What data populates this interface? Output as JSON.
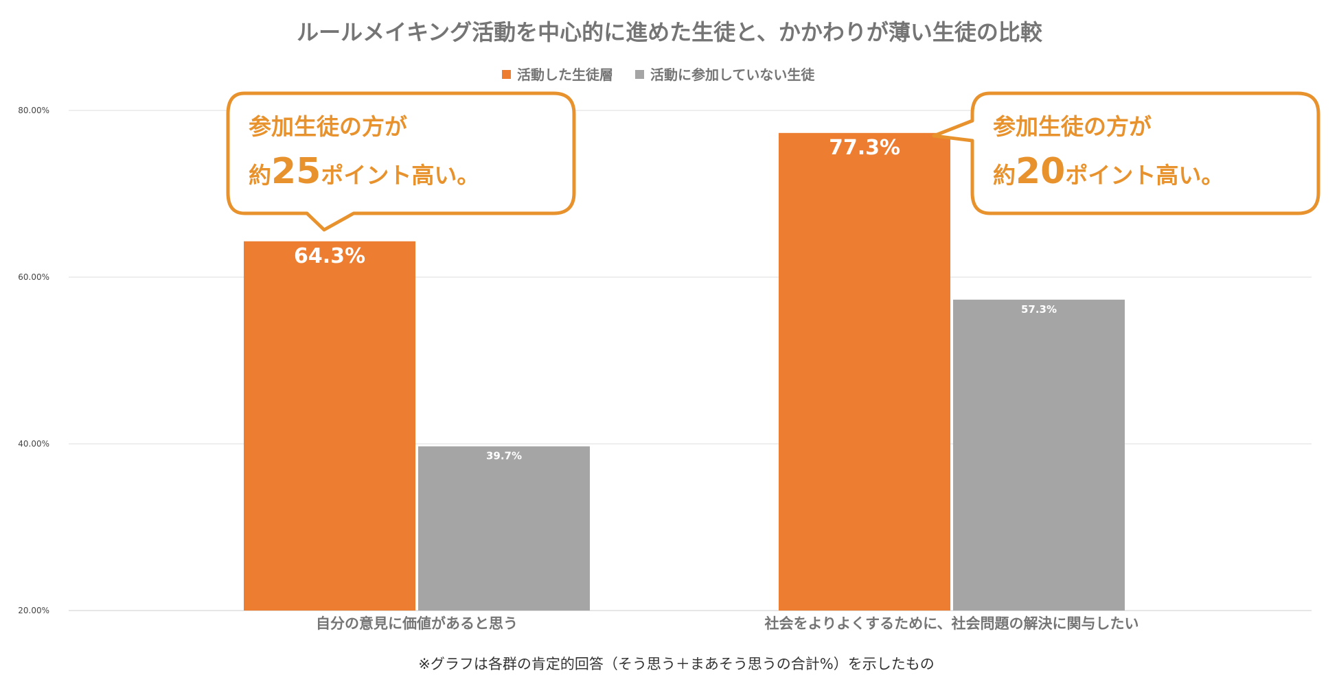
{
  "chart_data": {
    "type": "bar",
    "title": "ルールメイキング活動を中心的に進めた生徒と、かかわりが薄い生徒の比較",
    "categories": [
      "自分の意見に価値があると思う",
      "社会をよりよくするために、社会問題の解決に関与したい"
    ],
    "series": [
      {
        "name": "活動した生徒層",
        "values": [
          64.3,
          77.3
        ],
        "labels": [
          "64.3%",
          "77.3%"
        ],
        "color": "#ED7D31"
      },
      {
        "name": "活動に参加していない生徒",
        "values": [
          39.7,
          57.3
        ],
        "labels": [
          "39.7%",
          "57.3%"
        ],
        "color": "#A5A5A5"
      }
    ],
    "yticks": [
      "20.00%",
      "40.00%",
      "60.00%",
      "80.00%"
    ],
    "ylim": [
      20,
      80
    ],
    "grid": true,
    "legend_position": "top-center",
    "xlabel": "",
    "ylabel": ""
  },
  "callouts": [
    {
      "line1": "参加生徒の方が",
      "pre": "約",
      "number": "25",
      "post": "ポイント高い。"
    },
    {
      "line1": "参加生徒の方が",
      "pre": "約",
      "number": "20",
      "post": "ポイント高い。"
    }
  ],
  "note": "※グラフは各群の肯定的回答（そう思う＋まあそう思うの合計%）を示したもの",
  "colors": {
    "accent": "#ED7D31",
    "gray": "#A5A5A5",
    "callout": "#E8922E"
  }
}
